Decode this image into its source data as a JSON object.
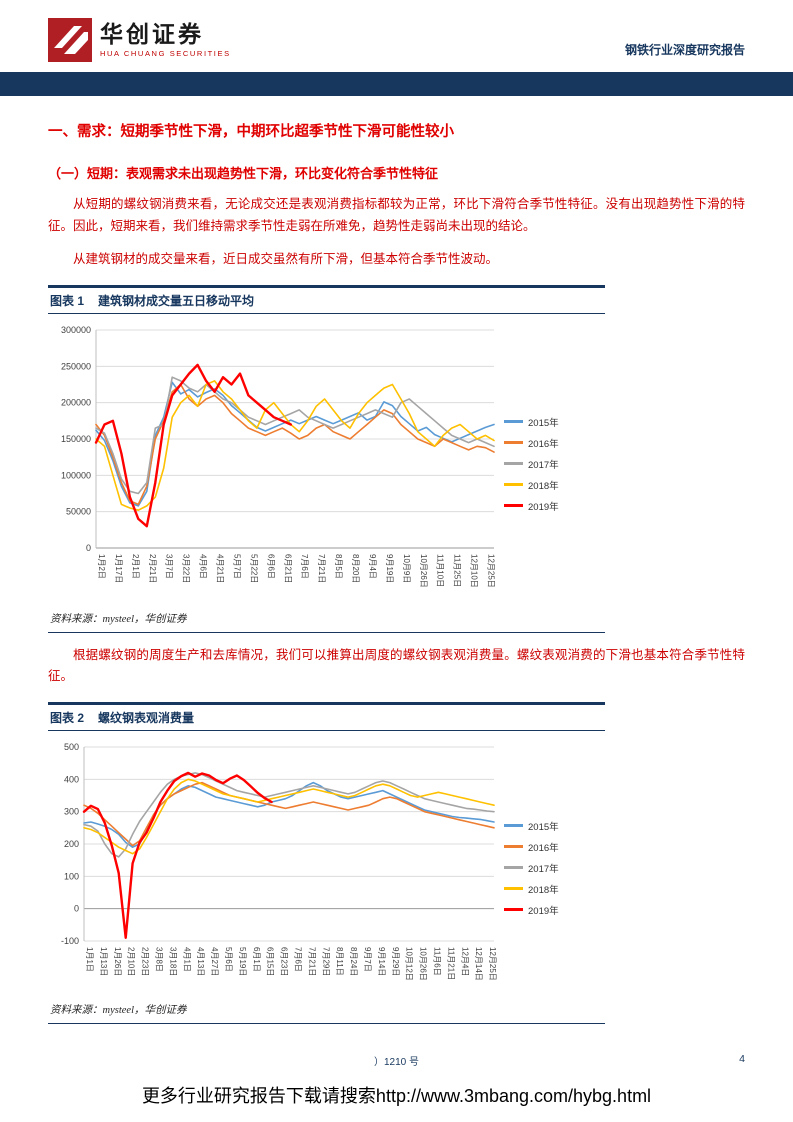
{
  "header": {
    "brand_cn": "华创证券",
    "brand_en": "HUA CHUANG SECURITIES",
    "report_type": "钢铁行业深度研究报告"
  },
  "content": {
    "section_heading": "一、需求：短期季节性下滑，中期环比超季节性下滑可能性较小",
    "subsection_heading": "（一）短期：表观需求未出现趋势性下滑，环比变化符合季节性特征",
    "paragraph1": "从短期的螺纹钢消费来看，无论成交还是表观消费指标都较为正常，环比下滑符合季节性特征。没有出现趋势性下滑的特征。因此，短期来看，我们维持需求季节性走弱在所难免，趋势性走弱尚未出现的结论。",
    "paragraph2": "从建筑钢材的成交量来看，近日成交虽然有所下滑，但基本符合季节性波动。",
    "paragraph3": "根据螺纹钢的周度生产和去库情况，我们可以推算出周度的螺纹钢表观消费量。螺纹表观消费的下滑也基本符合季节性特征。"
  },
  "figures": [
    {
      "label": "图表 1",
      "title": "建筑钢材成交量五日移动平均",
      "source": "资料来源：mysteel，华创证券"
    },
    {
      "label": "图表 2",
      "title": "螺纹钢表观消费量",
      "source": "资料来源：mysteel，华创证券"
    }
  ],
  "footer": {
    "license": "）1210 号",
    "page_number": "4",
    "download_text": "更多行业研究报告下载请搜索http://www.3mbang.com/hybg.html"
  },
  "colors": {
    "navy": "#17375E",
    "heading_red": "#E00000",
    "body_red": "#CC0000"
  },
  "chart_data": [
    {
      "type": "line",
      "title": "建筑钢材成交量五日移动平均",
      "ylim": [
        0,
        300000
      ],
      "yticks": [
        0,
        50000,
        100000,
        150000,
        200000,
        250000,
        300000
      ],
      "grid": true,
      "legend_position": "right",
      "points_per_label": 2,
      "x_labels": [
        "1月2日",
        "1月17日",
        "2月1日",
        "2月21日",
        "3月7日",
        "3月22日",
        "4月6日",
        "4月21日",
        "5月7日",
        "5月22日",
        "6月6日",
        "6月21日",
        "7月6日",
        "7月21日",
        "8月5日",
        "8月20日",
        "9月4日",
        "9月19日",
        "10月9日",
        "10月26日",
        "11月10日",
        "11月25日",
        "12月10日",
        "12月25日"
      ],
      "series": [
        {
          "name": "2015年",
          "color": "#5B9BD5",
          "width": 1.6,
          "values": [
            162000,
            148000,
            120000,
            85000,
            62000,
            58000,
            78000,
            155000,
            180000,
            228000,
            212000,
            218000,
            208000,
            214000,
            219000,
            210000,
            196000,
            186000,
            176000,
            166000,
            161000,
            166000,
            171000,
            176000,
            171000,
            176000,
            181000,
            176000,
            171000,
            176000,
            181000,
            186000,
            176000,
            181000,
            201000,
            196000,
            181000,
            171000,
            161000,
            166000,
            156000,
            151000,
            146000,
            151000,
            156000,
            161000,
            166000,
            170000
          ]
        },
        {
          "name": "2016年",
          "color": "#ED7D31",
          "width": 1.6,
          "values": [
            170000,
            155000,
            125000,
            90000,
            65000,
            60000,
            85000,
            150000,
            175000,
            215000,
            225000,
            205000,
            195000,
            205000,
            210000,
            200000,
            185000,
            175000,
            165000,
            160000,
            155000,
            160000,
            165000,
            158000,
            150000,
            155000,
            165000,
            170000,
            160000,
            155000,
            150000,
            160000,
            170000,
            180000,
            190000,
            185000,
            170000,
            160000,
            150000,
            145000,
            140000,
            150000,
            145000,
            140000,
            135000,
            140000,
            138000,
            132000
          ]
        },
        {
          "name": "2017年",
          "color": "#A5A5A5",
          "width": 1.6,
          "values": [
            165000,
            158000,
            130000,
            95000,
            78000,
            75000,
            90000,
            165000,
            170000,
            235000,
            230000,
            220000,
            215000,
            225000,
            215000,
            205000,
            200000,
            190000,
            180000,
            175000,
            170000,
            175000,
            180000,
            185000,
            190000,
            180000,
            175000,
            170000,
            165000,
            170000,
            175000,
            180000,
            185000,
            190000,
            185000,
            180000,
            200000,
            205000,
            195000,
            185000,
            175000,
            165000,
            155000,
            150000,
            145000,
            150000,
            145000,
            140000
          ]
        },
        {
          "name": "2018年",
          "color": "#FFC000",
          "width": 1.6,
          "values": [
            150000,
            140000,
            100000,
            60000,
            55000,
            52000,
            58000,
            70000,
            110000,
            180000,
            200000,
            210000,
            195000,
            225000,
            230000,
            215000,
            205000,
            190000,
            175000,
            165000,
            190000,
            200000,
            185000,
            170000,
            160000,
            175000,
            195000,
            205000,
            190000,
            175000,
            165000,
            185000,
            200000,
            210000,
            220000,
            225000,
            205000,
            185000,
            160000,
            150000,
            140000,
            155000,
            165000,
            170000,
            160000,
            150000,
            155000,
            148000
          ]
        },
        {
          "name": "2019年",
          "color": "#FF0000",
          "width": 2.4,
          "values": [
            145000,
            170000,
            175000,
            130000,
            70000,
            40000,
            30000,
            90000,
            170000,
            210000,
            225000,
            240000,
            252000,
            230000,
            215000,
            235000,
            225000,
            240000,
            210000,
            200000,
            190000,
            180000,
            175000,
            170000,
            null,
            null,
            null,
            null,
            null,
            null,
            null,
            null,
            null,
            null,
            null,
            null,
            null,
            null,
            null,
            null,
            null,
            null,
            null,
            null,
            null,
            null,
            null,
            null
          ]
        }
      ]
    },
    {
      "type": "line",
      "title": "螺纹钢表观消费量",
      "ylim": [
        -100,
        500
      ],
      "yticks": [
        -100,
        0,
        100,
        200,
        300,
        400,
        500
      ],
      "grid": true,
      "legend_position": "right",
      "points_per_label": 2,
      "x_labels": [
        "1月1日",
        "1月13日",
        "1月26日",
        "2月10日",
        "2月23日",
        "3月8日",
        "3月18日",
        "4月1日",
        "4月13日",
        "4月27日",
        "5月6日",
        "5月19日",
        "6月1日",
        "6月15日",
        "6月23日",
        "7月6日",
        "7月21日",
        "7月29日",
        "8月11日",
        "8月24日",
        "9月7日",
        "9月14日",
        "9月29日",
        "10月12日",
        "10月26日",
        "11月6日",
        "11月21日",
        "12月4日",
        "12月14日",
        "12月25日"
      ],
      "series": [
        {
          "name": "2015年",
          "color": "#5B9BD5",
          "width": 1.6,
          "values": [
            265,
            268,
            262,
            255,
            245,
            230,
            205,
            190,
            200,
            240,
            290,
            320,
            340,
            355,
            370,
            380,
            375,
            365,
            355,
            345,
            340,
            335,
            330,
            325,
            320,
            315,
            320,
            330,
            335,
            340,
            350,
            365,
            380,
            390,
            380,
            365,
            355,
            345,
            340,
            345,
            350,
            355,
            360,
            365,
            355,
            345,
            335,
            325,
            315,
            305,
            300,
            295,
            290,
            285,
            282,
            280,
            278,
            276,
            272,
            268
          ]
        },
        {
          "name": "2016年",
          "color": "#ED7D31",
          "width": 1.6,
          "values": [
            320,
            310,
            295,
            275,
            255,
            235,
            215,
            195,
            210,
            250,
            290,
            320,
            340,
            355,
            365,
            375,
            385,
            390,
            380,
            370,
            360,
            350,
            345,
            340,
            335,
            330,
            325,
            320,
            315,
            310,
            315,
            320,
            325,
            330,
            325,
            320,
            315,
            310,
            305,
            310,
            315,
            320,
            330,
            340,
            345,
            340,
            330,
            320,
            310,
            300,
            295,
            290,
            285,
            280,
            275,
            270,
            265,
            260,
            255,
            250
          ]
        },
        {
          "name": "2017年",
          "color": "#A5A5A5",
          "width": 1.6,
          "values": [
            260,
            255,
            240,
            200,
            170,
            160,
            185,
            230,
            270,
            300,
            330,
            360,
            385,
            400,
            410,
            415,
            420,
            415,
            405,
            395,
            385,
            375,
            365,
            360,
            355,
            350,
            345,
            350,
            355,
            360,
            365,
            370,
            375,
            380,
            375,
            370,
            365,
            360,
            355,
            360,
            370,
            380,
            390,
            395,
            390,
            380,
            370,
            360,
            350,
            340,
            335,
            330,
            325,
            320,
            315,
            310,
            308,
            305,
            302,
            300
          ]
        },
        {
          "name": "2018年",
          "color": "#FFC000",
          "width": 1.6,
          "values": [
            250,
            245,
            235,
            220,
            205,
            190,
            180,
            170,
            185,
            220,
            260,
            300,
            340,
            370,
            390,
            400,
            395,
            385,
            375,
            365,
            355,
            350,
            345,
            340,
            335,
            330,
            335,
            340,
            345,
            350,
            355,
            360,
            365,
            370,
            365,
            360,
            355,
            350,
            345,
            350,
            360,
            370,
            380,
            385,
            380,
            370,
            360,
            350,
            345,
            350,
            355,
            360,
            355,
            350,
            345,
            340,
            335,
            330,
            325,
            320
          ]
        },
        {
          "name": "2019年",
          "color": "#FF0000",
          "width": 2.4,
          "values": [
            300,
            318,
            308,
            265,
            195,
            110,
            -90,
            140,
            205,
            235,
            280,
            330,
            365,
            395,
            410,
            420,
            408,
            418,
            412,
            398,
            388,
            402,
            412,
            398,
            378,
            358,
            342,
            330,
            null,
            null,
            null,
            null,
            null,
            null,
            null,
            null,
            null,
            null,
            null,
            null,
            null,
            null,
            null,
            null,
            null,
            null,
            null,
            null,
            null,
            null,
            null,
            null,
            null,
            null,
            null,
            null,
            null,
            null,
            null,
            null
          ]
        }
      ]
    }
  ]
}
